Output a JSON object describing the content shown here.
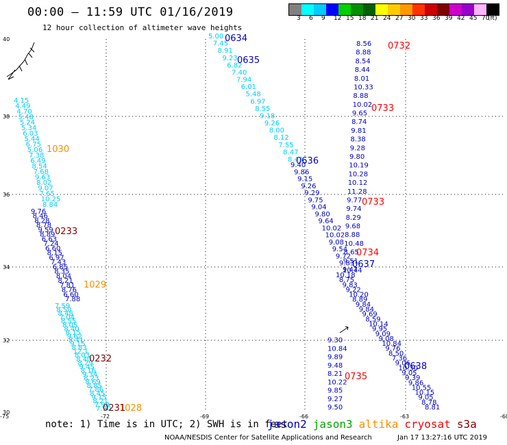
{
  "title": "00:00 – 11:59 UTC 01/16/2019",
  "subtitle": "12 hour collection of altimeter wave heights",
  "colorbar": {
    "colors": [
      "#808080",
      "#00ffff",
      "#00ccff",
      "#0000ff",
      "#00d000",
      "#009000",
      "#006000",
      "#ffff00",
      "#ffcc00",
      "#ff9900",
      "#ff3300",
      "#cc0000",
      "#800000",
      "#cc00cc",
      "#9900cc",
      "#ffb6ff",
      "#000000"
    ],
    "labels": [
      "3",
      "6",
      "9",
      "12",
      "15",
      "18",
      "21",
      "24",
      "27",
      "30",
      "33",
      "36",
      "39",
      "42",
      "45",
      "70",
      "(ft)"
    ]
  },
  "axes": {
    "lat_ticks": [
      "40",
      "38",
      "36",
      "34",
      "32",
      "30"
    ],
    "lon_ticks": [
      "-75",
      "-72",
      "-69",
      "-66",
      "-63",
      "-60"
    ]
  },
  "tracks": [
    {
      "color": "#00ccff",
      "values": [
        "4.15",
        "4.49",
        "4.70",
        "5.48",
        "5.24",
        "5.34",
        "6.03",
        "5.44",
        "6.75",
        "5.06",
        "7.38",
        "6.49",
        "8.54",
        "7.68",
        "9.63",
        "8.02",
        "9.07",
        "7.65",
        "10.25",
        "8.84"
      ]
    },
    {
      "color": "#0000c0",
      "values": [
        "9.76",
        "8.46",
        "8.28",
        "8.78",
        "9.59",
        "8.89",
        "6.63",
        "7.24",
        "6.60",
        "8.15",
        "6.97",
        "7.43",
        "6.85",
        "8.35",
        "8.04",
        "8.21",
        "7.81",
        "8.76",
        "6.60",
        "7.88"
      ]
    },
    {
      "color": "#00ccff",
      "values": [
        "7.59",
        "8.50",
        "8.48",
        "7.04",
        "8.55",
        "8.05",
        "8.40",
        "8.15",
        "9.62",
        "8.41",
        "9.15",
        "8.83",
        "12.1",
        "8.03",
        "8.40",
        "8.29",
        "9.45",
        "8.16",
        "9.34",
        "8.23",
        "8.69",
        "8.85",
        "7.86",
        "8.45",
        "9.15",
        "8.21",
        "7.98",
        "7.90"
      ]
    },
    {
      "color": "#00ccff",
      "values": [
        "5.00",
        "7.45",
        "8.91",
        "9.23",
        "6.82",
        "7.40",
        "7.94",
        "6.01",
        "5.48",
        "6.97",
        "8.55",
        "9.18",
        "9.26",
        "8.00",
        "8.12",
        "7.55",
        "8.47",
        "8.43"
      ]
    },
    {
      "color": "#0000c0",
      "values": [
        "9.40",
        "9.86",
        "9.15",
        "9.26",
        "9.29",
        "9.75",
        "9.04",
        "9.80",
        "9.64",
        "10.02",
        "10.02",
        "9.08",
        "9.54",
        "9.72",
        "9.83",
        "10.44"
      ]
    },
    {
      "color": "#0000c0",
      "values": [
        "8.56",
        "8.88",
        "8.54",
        "8.44",
        "8.01",
        "10.33",
        "8.88",
        "10.02",
        "9.65",
        "8.74",
        "9.81",
        "8.38",
        "9.28",
        "9.80",
        "10.19",
        "10.28",
        "10.12",
        "11.28",
        "9.77",
        "9.74",
        "8.29",
        "9.68",
        "8.88",
        "10.48",
        "8.65",
        "9.51",
        "9.47"
      ]
    },
    {
      "color": "#0000c0",
      "values": [
        "10.18",
        "8.75",
        "9.83",
        "9.22",
        "10.20",
        "8.89",
        "9.84",
        "9.84",
        "9.69",
        "8.59",
        "10.14",
        "9.95",
        "9.09",
        "9.08",
        "10.84",
        "9.76",
        "8.50",
        "7.36",
        "9.06",
        "10.30",
        "9.05",
        "9.39",
        "9.86",
        "10.55",
        "10.15",
        "9.05",
        "8.78",
        "8.81"
      ]
    },
    {
      "color": "#0000c0",
      "values": [
        "9.30",
        "10.84",
        "9.89",
        "9.48",
        "8.21",
        "10.22",
        "9.85",
        "9.27",
        "9.50"
      ]
    }
  ],
  "time_labels": [
    {
      "text": "0634",
      "color": "#0000c0"
    },
    {
      "text": "0635",
      "color": "#0000c0"
    },
    {
      "text": "0636",
      "color": "#0000c0"
    },
    {
      "text": "0637",
      "color": "#0000c0"
    },
    {
      "text": "0638",
      "color": "#0000c0"
    },
    {
      "text": "0732",
      "color": "#ff0000"
    },
    {
      "text": "0733",
      "color": "#ff0000"
    },
    {
      "text": "0733",
      "color": "#ff0000"
    },
    {
      "text": "0734",
      "color": "#ff0000"
    },
    {
      "text": "0735",
      "color": "#ff0000"
    },
    {
      "text": "1030",
      "color": "#ff8c00"
    },
    {
      "text": "1029",
      "color": "#ff8c00"
    },
    {
      "text": "1028",
      "color": "#ff8c00"
    },
    {
      "text": "0233",
      "color": "#800000"
    },
    {
      "text": "0232",
      "color": "#800000"
    },
    {
      "text": "0231",
      "color": "#800000"
    }
  ],
  "note": "note: 1) Time is in UTC; 2) SWH is in feet",
  "legend": [
    {
      "text": "jason2",
      "color": "#0000c0"
    },
    {
      "text": "jason3",
      "color": "#00aa00"
    },
    {
      "text": "altika",
      "color": "#ff8c00"
    },
    {
      "text": "cryosat",
      "color": "#ff0000"
    },
    {
      "text": "s3a",
      "color": "#800000"
    }
  ],
  "credit": "NOAA/NESDIS Center for Satellite Applications and Research",
  "timestamp": "Jan 17 13:27:16 UTC 2019"
}
